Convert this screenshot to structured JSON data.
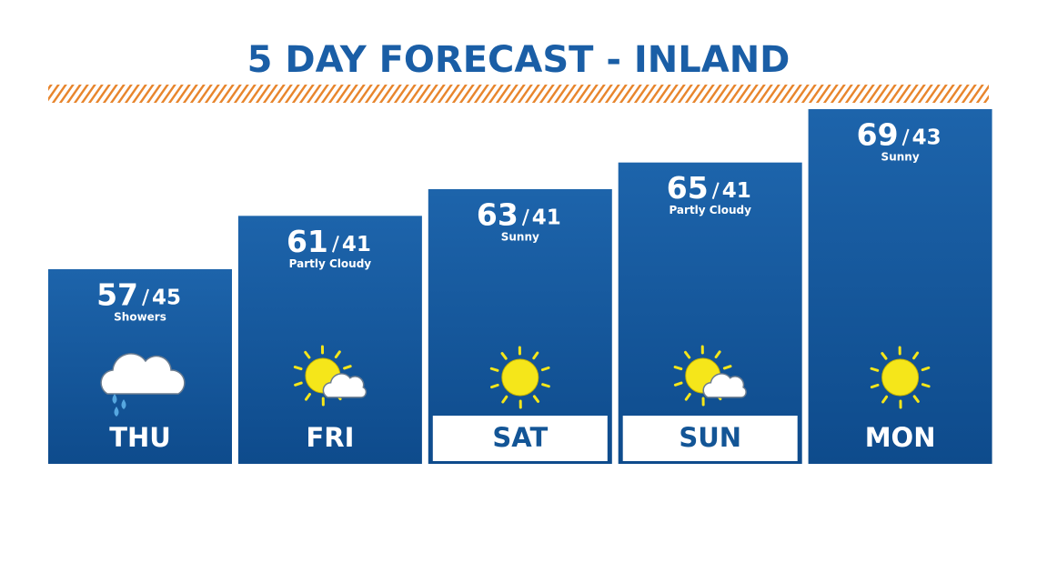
{
  "chart_data": {
    "type": "bar",
    "title": "5 DAY FORECAST - INLAND",
    "categories": [
      "THU",
      "FRI",
      "SAT",
      "SUN",
      "MON"
    ],
    "values": [
      57,
      61,
      63,
      65,
      69
    ],
    "lows": [
      45,
      41,
      41,
      41,
      43
    ],
    "conditions": [
      "Showers",
      "Partly Cloudy",
      "Sunny",
      "Partly Cloudy",
      "Sunny"
    ],
    "color": "#135596"
  }
}
